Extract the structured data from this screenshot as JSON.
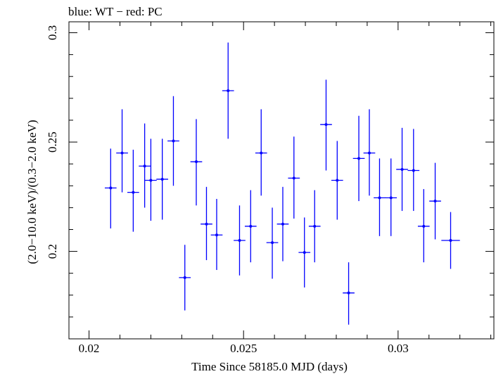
{
  "chart_data": {
    "type": "scatter",
    "title": "blue: WT − red: PC",
    "xlabel": "Time Since 58185.0 MJD (days)",
    "ylabel": "(2.0−10.0 keV)/(0.3−2.0 keV)",
    "xlim": [
      0.01935,
      0.0331
    ],
    "ylim": [
      0.16,
      0.305
    ],
    "xticks": [
      {
        "value": 0.02,
        "label": "0.02"
      },
      {
        "value": 0.025,
        "label": "0.025"
      },
      {
        "value": 0.03,
        "label": "0.03"
      }
    ],
    "yticks": [
      {
        "value": 0.2,
        "label": "0.2"
      },
      {
        "value": 0.25,
        "label": "0.25"
      },
      {
        "value": 0.3,
        "label": "0.3"
      }
    ],
    "grid": false,
    "series": [
      {
        "color": "#0000ff",
        "points": [
          {
            "x": 0.0207,
            "y": 0.229,
            "xerr": 0.00019,
            "ylo": 0.2105,
            "yhi": 0.247
          },
          {
            "x": 0.02107,
            "y": 0.245,
            "xerr": 0.00019,
            "ylo": 0.227,
            "yhi": 0.265
          },
          {
            "x": 0.02143,
            "y": 0.227,
            "xerr": 0.00019,
            "ylo": 0.209,
            "yhi": 0.2465
          },
          {
            "x": 0.0218,
            "y": 0.239,
            "xerr": 0.00019,
            "ylo": 0.22,
            "yhi": 0.2585
          },
          {
            "x": 0.022,
            "y": 0.2325,
            "xerr": 0.00019,
            "ylo": 0.214,
            "yhi": 0.2515
          },
          {
            "x": 0.02237,
            "y": 0.233,
            "xerr": 0.00019,
            "ylo": 0.2145,
            "yhi": 0.2515
          },
          {
            "x": 0.02273,
            "y": 0.2505,
            "xerr": 0.00019,
            "ylo": 0.23,
            "yhi": 0.271
          },
          {
            "x": 0.0231,
            "y": 0.188,
            "xerr": 0.00019,
            "ylo": 0.173,
            "yhi": 0.203
          },
          {
            "x": 0.02347,
            "y": 0.241,
            "xerr": 0.00019,
            "ylo": 0.221,
            "yhi": 0.2605
          },
          {
            "x": 0.0238,
            "y": 0.2125,
            "xerr": 0.00019,
            "ylo": 0.196,
            "yhi": 0.2295
          },
          {
            "x": 0.02413,
            "y": 0.2075,
            "xerr": 0.00019,
            "ylo": 0.1915,
            "yhi": 0.224
          },
          {
            "x": 0.0245,
            "y": 0.2735,
            "xerr": 0.00019,
            "ylo": 0.2515,
            "yhi": 0.2955
          },
          {
            "x": 0.02487,
            "y": 0.205,
            "xerr": 0.00019,
            "ylo": 0.189,
            "yhi": 0.221
          },
          {
            "x": 0.02523,
            "y": 0.2115,
            "xerr": 0.00019,
            "ylo": 0.195,
            "yhi": 0.228
          },
          {
            "x": 0.02557,
            "y": 0.245,
            "xerr": 0.00019,
            "ylo": 0.2255,
            "yhi": 0.265
          },
          {
            "x": 0.02593,
            "y": 0.204,
            "xerr": 0.00019,
            "ylo": 0.1875,
            "yhi": 0.22
          },
          {
            "x": 0.02627,
            "y": 0.2125,
            "xerr": 0.00019,
            "ylo": 0.1955,
            "yhi": 0.2295
          },
          {
            "x": 0.02663,
            "y": 0.2335,
            "xerr": 0.00019,
            "ylo": 0.215,
            "yhi": 0.2525
          },
          {
            "x": 0.02697,
            "y": 0.1995,
            "xerr": 0.00019,
            "ylo": 0.1835,
            "yhi": 0.2155
          },
          {
            "x": 0.0273,
            "y": 0.2115,
            "xerr": 0.00019,
            "ylo": 0.195,
            "yhi": 0.228
          },
          {
            "x": 0.02767,
            "y": 0.258,
            "xerr": 0.00019,
            "ylo": 0.237,
            "yhi": 0.2785
          },
          {
            "x": 0.02803,
            "y": 0.2325,
            "xerr": 0.00019,
            "ylo": 0.2145,
            "yhi": 0.2505
          },
          {
            "x": 0.0284,
            "y": 0.181,
            "xerr": 0.00019,
            "ylo": 0.1665,
            "yhi": 0.195
          },
          {
            "x": 0.02873,
            "y": 0.2425,
            "xerr": 0.00019,
            "ylo": 0.223,
            "yhi": 0.262
          },
          {
            "x": 0.02907,
            "y": 0.245,
            "xerr": 0.00019,
            "ylo": 0.2255,
            "yhi": 0.265
          },
          {
            "x": 0.0294,
            "y": 0.2245,
            "xerr": 0.00019,
            "ylo": 0.207,
            "yhi": 0.2425
          },
          {
            "x": 0.02977,
            "y": 0.2245,
            "xerr": 0.00019,
            "ylo": 0.207,
            "yhi": 0.2425
          },
          {
            "x": 0.03013,
            "y": 0.2375,
            "xerr": 0.00019,
            "ylo": 0.2185,
            "yhi": 0.2565
          },
          {
            "x": 0.0305,
            "y": 0.237,
            "xerr": 0.00019,
            "ylo": 0.2185,
            "yhi": 0.256
          },
          {
            "x": 0.03083,
            "y": 0.2115,
            "xerr": 0.00019,
            "ylo": 0.195,
            "yhi": 0.2285
          },
          {
            "x": 0.0312,
            "y": 0.223,
            "xerr": 0.00019,
            "ylo": 0.2055,
            "yhi": 0.2405
          },
          {
            "x": 0.0317,
            "y": 0.205,
            "xerr": 0.0003,
            "ylo": 0.192,
            "yhi": 0.218
          }
        ]
      }
    ]
  }
}
